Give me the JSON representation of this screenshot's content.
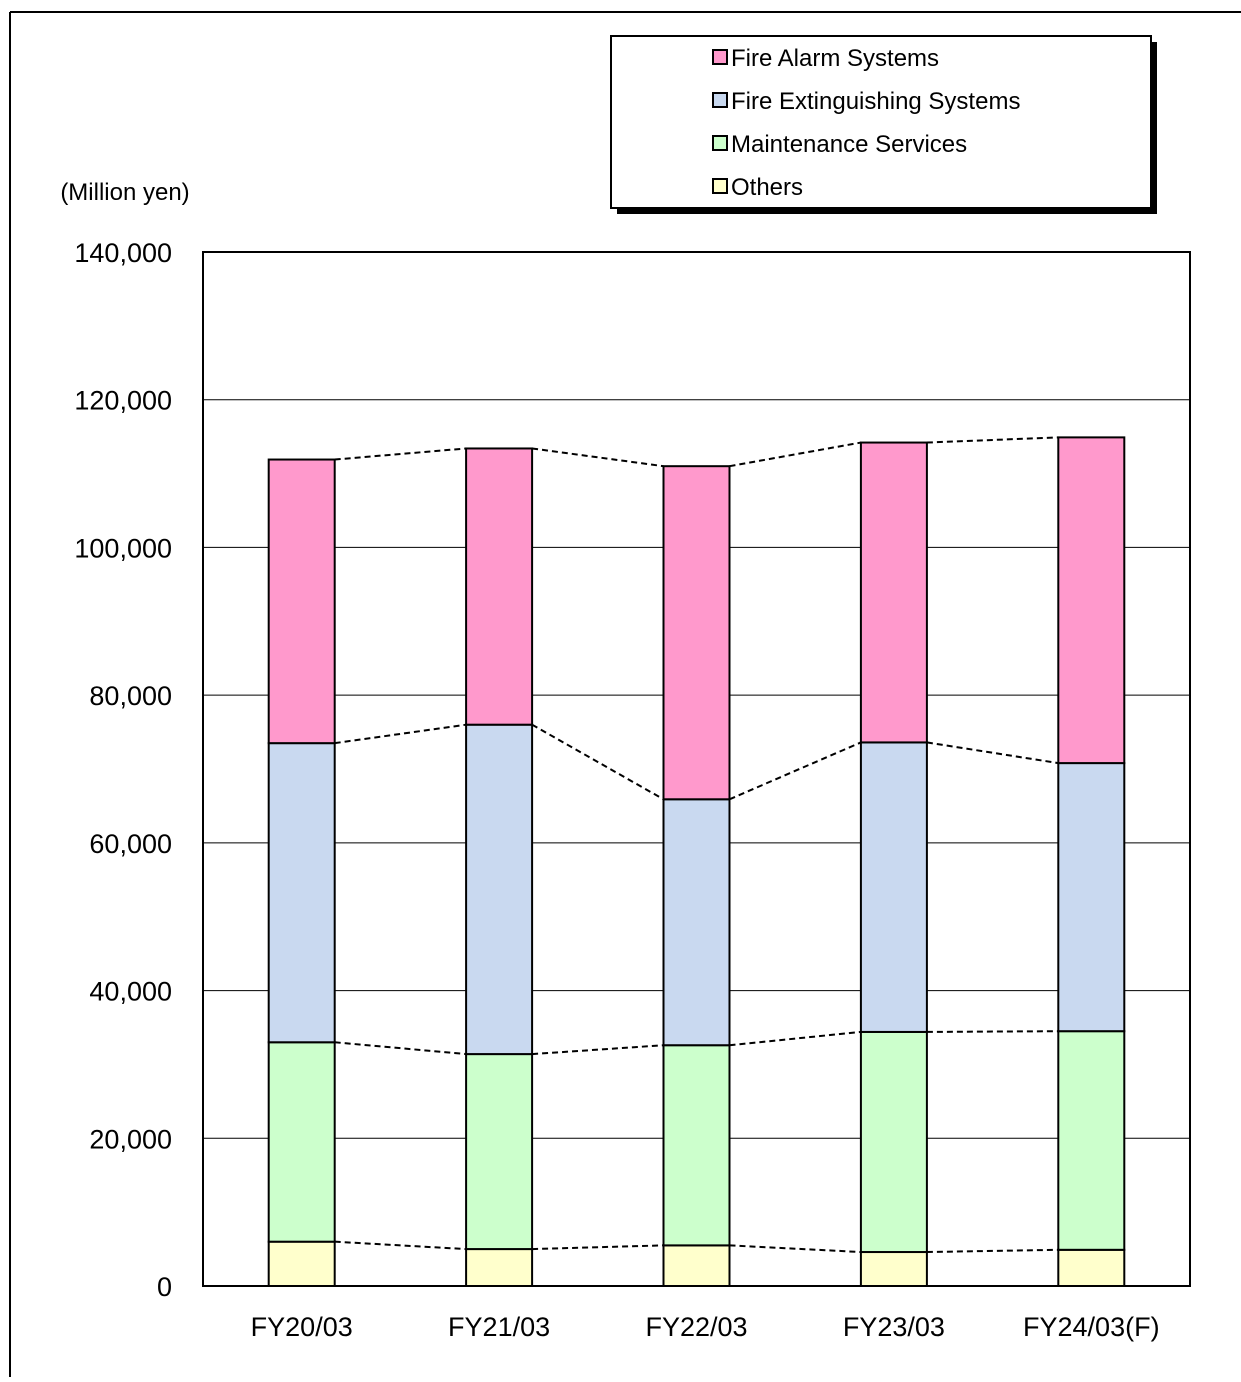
{
  "chart_data": {
    "type": "bar",
    "stacked": true,
    "unit_label": "(Million yen)",
    "categories": [
      "FY20/03",
      "FY21/03",
      "FY22/03",
      "FY23/03",
      "FY24/03(F)"
    ],
    "ylim": [
      0,
      140000
    ],
    "yticks": [
      0,
      20000,
      40000,
      60000,
      80000,
      100000,
      120000,
      140000
    ],
    "ytick_labels": [
      "0",
      "20,000",
      "40,000",
      "60,000",
      "80,000",
      "100,000",
      "120,000",
      "140,000"
    ],
    "grid": true,
    "legend_position": "top-right",
    "series_connector_lines": "dashed",
    "series": [
      {
        "name": "Others",
        "color": "#FFFFCC",
        "values": [
          6000,
          5000,
          5500,
          4600,
          4900
        ]
      },
      {
        "name": "Maintenance Services",
        "color": "#CCFFCC",
        "values": [
          27000,
          26400,
          27100,
          29800,
          29600
        ]
      },
      {
        "name": "Fire Extinguishing Systems",
        "color": "#C9D9F0",
        "values": [
          40500,
          44600,
          33300,
          39200,
          36300
        ]
      },
      {
        "name": "Fire Alarm Systems",
        "color": "#FF99CC",
        "values": [
          38400,
          37400,
          45100,
          40600,
          44100
        ]
      }
    ],
    "legend_order": [
      "Fire Alarm Systems",
      "Fire Extinguishing Systems",
      "Maintenance Services",
      "Others"
    ]
  }
}
